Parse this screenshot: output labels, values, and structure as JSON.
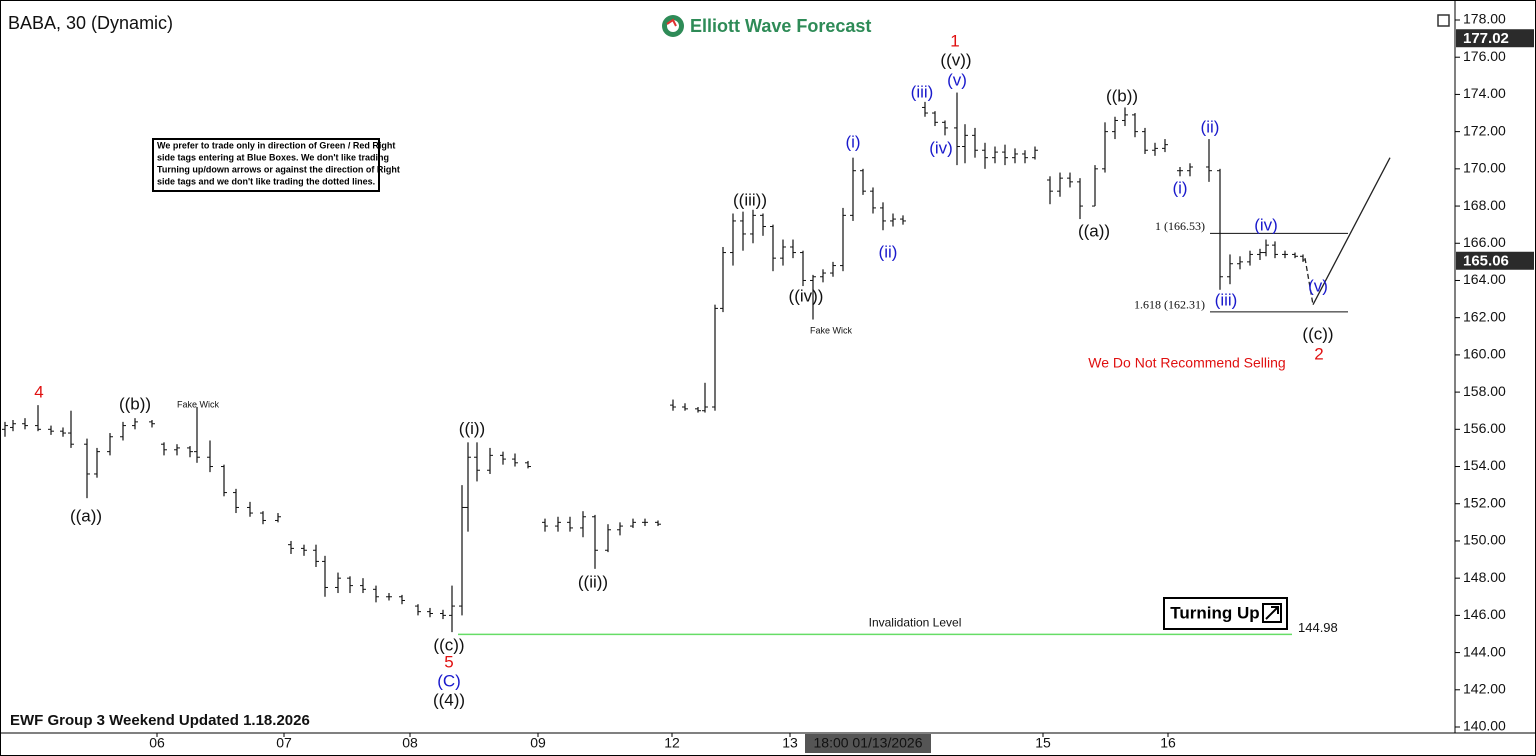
{
  "chart_data": {
    "type": "ohlc",
    "title": "BABA, 30 (Dynamic)",
    "logo": "Elliott Wave Forecast",
    "footer": "EWF Group 3 Weekend Updated 1.18.2026",
    "warning": "We Do Not Recommend Selling",
    "badge": "Turning Up",
    "note_lines": [
      "We prefer to trade only in direction of Green / Red Right",
      "side tags entering at Blue Boxes. We don't like trading",
      "Turning up/down arrows or against the direction of Right",
      "side tags and we don't like trading the dotted lines."
    ],
    "bar_color": "#111111",
    "xlim": [
      0,
      145.5
    ],
    "ylim": [
      140,
      178
    ],
    "yticks": [
      {
        "value": 140,
        "label": "140.00"
      },
      {
        "value": 142,
        "label": "142.00"
      },
      {
        "value": 144,
        "label": "144.00"
      },
      {
        "value": 146,
        "label": "146.00"
      },
      {
        "value": 148,
        "label": "148.00"
      },
      {
        "value": 150,
        "label": "150.00"
      },
      {
        "value": 152,
        "label": "152.00"
      },
      {
        "value": 154,
        "label": "154.00"
      },
      {
        "value": 156,
        "label": "156.00"
      },
      {
        "value": 158,
        "label": "158.00"
      },
      {
        "value": 160,
        "label": "160.00"
      },
      {
        "value": 162,
        "label": "162.00"
      },
      {
        "value": 164,
        "label": "164.00"
      },
      {
        "value": 166,
        "label": "166.00"
      },
      {
        "value": 168,
        "label": "168.00"
      },
      {
        "value": 170,
        "label": "170.00"
      },
      {
        "value": 172,
        "label": "172.00"
      },
      {
        "value": 174,
        "label": "174.00"
      },
      {
        "value": 176,
        "label": "176.00"
      },
      {
        "value": 178,
        "label": "178.00"
      }
    ],
    "xticks": [
      {
        "value": 15.7,
        "label": "06"
      },
      {
        "value": 28.4,
        "label": "07"
      },
      {
        "value": 41.0,
        "label": "08"
      },
      {
        "value": 53.8,
        "label": "09"
      },
      {
        "value": 67.2,
        "label": "12"
      },
      {
        "value": 79.0,
        "label": "13"
      },
      {
        "value": 104.3,
        "label": "15"
      },
      {
        "value": 116.8,
        "label": "16"
      }
    ],
    "crosshair": {
      "value": 86.8,
      "label": "18:00 01/13/2026"
    },
    "price_tags": [
      {
        "value": 177.02,
        "color": "#2b2b2b"
      },
      {
        "value": 165.06,
        "color": "#2b2b2b"
      }
    ],
    "bars": [
      [
        0.5,
        156.0,
        156.4,
        155.6,
        156.2
      ],
      [
        1.3,
        156.1,
        156.5,
        155.9,
        156.3
      ],
      [
        2.5,
        156.3,
        156.6,
        156.0,
        156.2
      ],
      [
        3.8,
        156.2,
        157.3,
        155.9,
        156.0
      ],
      [
        5.1,
        156.0,
        156.2,
        155.7,
        155.9
      ],
      [
        6.3,
        155.9,
        156.1,
        155.6,
        155.8
      ],
      [
        7.1,
        155.8,
        157.0,
        155.0,
        155.2
      ],
      [
        8.7,
        155.2,
        155.5,
        152.3,
        153.6
      ],
      [
        9.7,
        153.6,
        155.0,
        153.4,
        154.8
      ],
      [
        11.0,
        154.8,
        155.8,
        154.6,
        155.6
      ],
      [
        12.3,
        155.6,
        156.4,
        155.4,
        156.2
      ],
      [
        13.5,
        156.2,
        156.6,
        156.0,
        156.4
      ],
      [
        15.2,
        156.4,
        156.5,
        156.1,
        156.3
      ],
      [
        16.4,
        155.2,
        155.3,
        154.6,
        154.9
      ],
      [
        17.7,
        154.9,
        155.2,
        154.6,
        155.0
      ],
      [
        19.0,
        155.0,
        155.1,
        154.5,
        154.8
      ],
      [
        19.7,
        154.8,
        157.2,
        154.2,
        154.5
      ],
      [
        21.0,
        154.5,
        155.4,
        153.7,
        154.0
      ],
      [
        22.4,
        154.0,
        154.1,
        152.4,
        152.6
      ],
      [
        23.6,
        152.6,
        152.8,
        151.5,
        151.8
      ],
      [
        25.0,
        151.8,
        152.1,
        151.3,
        151.5
      ],
      [
        26.3,
        151.5,
        151.6,
        150.9,
        151.1
      ],
      [
        27.8,
        151.1,
        151.5,
        151.0,
        151.3
      ],
      [
        29.1,
        149.8,
        150.0,
        149.3,
        149.6
      ],
      [
        30.4,
        149.6,
        149.8,
        149.2,
        149.5
      ],
      [
        31.6,
        149.5,
        149.8,
        148.6,
        148.9
      ],
      [
        32.5,
        148.9,
        149.2,
        147.0,
        147.5
      ],
      [
        33.8,
        147.5,
        148.3,
        147.2,
        148.0
      ],
      [
        35.0,
        148.0,
        148.1,
        147.2,
        147.6
      ],
      [
        36.3,
        147.6,
        148.0,
        147.2,
        147.4
      ],
      [
        37.6,
        147.4,
        147.6,
        146.7,
        147.0
      ],
      [
        38.9,
        147.0,
        147.2,
        146.8,
        147.0
      ],
      [
        40.2,
        147.0,
        147.1,
        146.6,
        146.8
      ],
      [
        41.8,
        146.5,
        146.6,
        146.0,
        146.2
      ],
      [
        43.0,
        146.2,
        146.4,
        145.9,
        146.1
      ],
      [
        44.3,
        146.1,
        146.3,
        145.8,
        146.0
      ],
      [
        45.2,
        146.0,
        147.6,
        145.1,
        146.5
      ],
      [
        46.2,
        146.5,
        153.0,
        146.0,
        151.8
      ],
      [
        46.8,
        151.8,
        155.3,
        150.5,
        154.5
      ],
      [
        47.7,
        154.5,
        155.3,
        153.2,
        153.8
      ],
      [
        49.0,
        153.8,
        155.0,
        153.6,
        154.6
      ],
      [
        50.3,
        154.6,
        154.8,
        154.1,
        154.4
      ],
      [
        51.5,
        154.4,
        154.7,
        154.0,
        154.2
      ],
      [
        52.8,
        154.2,
        154.3,
        153.9,
        154.0
      ],
      [
        54.5,
        151.0,
        151.2,
        150.5,
        150.8
      ],
      [
        55.8,
        150.8,
        151.3,
        150.5,
        151.0
      ],
      [
        57.0,
        151.0,
        151.3,
        150.5,
        150.7
      ],
      [
        58.3,
        150.7,
        151.6,
        150.2,
        151.3
      ],
      [
        59.5,
        151.3,
        151.4,
        148.5,
        149.5
      ],
      [
        60.8,
        149.5,
        150.9,
        149.4,
        150.6
      ],
      [
        62.0,
        150.6,
        151.0,
        150.3,
        150.8
      ],
      [
        63.3,
        150.8,
        151.2,
        150.7,
        151.0
      ],
      [
        64.5,
        151.0,
        151.2,
        150.8,
        151.0
      ],
      [
        65.8,
        151.0,
        151.1,
        150.8,
        150.9
      ],
      [
        67.3,
        157.3,
        157.6,
        157.0,
        157.2
      ],
      [
        68.5,
        157.2,
        157.4,
        157.0,
        157.1
      ],
      [
        69.8,
        157.1,
        157.2,
        156.9,
        157.0
      ],
      [
        70.5,
        157.0,
        158.5,
        156.9,
        157.2
      ],
      [
        71.5,
        157.2,
        162.7,
        157.0,
        162.5
      ],
      [
        72.3,
        162.5,
        165.8,
        162.3,
        165.5
      ],
      [
        73.3,
        165.5,
        167.6,
        164.8,
        167.2
      ],
      [
        74.3,
        167.2,
        167.7,
        165.6,
        166.5
      ],
      [
        75.3,
        166.5,
        167.8,
        166.0,
        167.5
      ],
      [
        76.3,
        167.5,
        167.6,
        166.4,
        166.9
      ],
      [
        77.3,
        166.9,
        167.0,
        164.5,
        165.2
      ],
      [
        78.3,
        165.2,
        166.2,
        164.8,
        165.8
      ],
      [
        79.3,
        165.8,
        166.2,
        165.2,
        165.5
      ],
      [
        80.3,
        165.5,
        165.6,
        163.7,
        164.0
      ],
      [
        81.3,
        164.0,
        164.3,
        161.9,
        164.2
      ],
      [
        82.3,
        164.2,
        164.6,
        163.9,
        164.4
      ],
      [
        83.3,
        164.4,
        165.0,
        164.2,
        164.8
      ],
      [
        84.3,
        164.8,
        167.9,
        164.5,
        167.5
      ],
      [
        85.3,
        167.5,
        170.6,
        167.2,
        169.9
      ],
      [
        86.3,
        169.9,
        170.0,
        168.6,
        168.8
      ],
      [
        87.3,
        168.8,
        169.0,
        167.6,
        167.9
      ],
      [
        88.3,
        167.9,
        168.2,
        166.7,
        167.2
      ],
      [
        89.3,
        167.2,
        167.6,
        166.9,
        167.3
      ],
      [
        90.3,
        167.3,
        167.5,
        167.0,
        167.2
      ],
      [
        92.5,
        173.3,
        173.6,
        172.8,
        173.0
      ],
      [
        93.5,
        173.0,
        173.1,
        172.3,
        172.5
      ],
      [
        94.5,
        172.5,
        172.6,
        171.8,
        172.2
      ],
      [
        95.7,
        172.2,
        174.1,
        170.2,
        171.2
      ],
      [
        96.5,
        171.2,
        172.4,
        170.3,
        171.8
      ],
      [
        97.5,
        171.8,
        172.2,
        170.6,
        171.0
      ],
      [
        98.5,
        171.0,
        171.4,
        170.0,
        170.6
      ],
      [
        99.5,
        170.6,
        171.2,
        170.3,
        170.9
      ],
      [
        100.5,
        170.9,
        171.3,
        170.2,
        170.6
      ],
      [
        101.5,
        170.6,
        171.1,
        170.3,
        170.8
      ],
      [
        102.5,
        170.8,
        171.0,
        170.3,
        170.6
      ],
      [
        103.5,
        170.6,
        171.2,
        170.5,
        171.0
      ],
      [
        105.0,
        169.4,
        169.6,
        168.1,
        168.8
      ],
      [
        106.0,
        168.8,
        169.8,
        168.5,
        169.5
      ],
      [
        107.0,
        169.5,
        169.8,
        169.0,
        169.3
      ],
      [
        108.0,
        169.3,
        169.5,
        167.3,
        168.0
      ],
      [
        109.5,
        168.0,
        170.2,
        168.0,
        170.0
      ],
      [
        110.5,
        170.0,
        172.5,
        169.8,
        172.0
      ],
      [
        111.5,
        172.0,
        172.8,
        171.6,
        172.6
      ],
      [
        112.5,
        172.6,
        173.3,
        172.3,
        172.9
      ],
      [
        113.5,
        172.9,
        173.0,
        171.7,
        172.0
      ],
      [
        114.5,
        172.0,
        172.2,
        170.8,
        171.0
      ],
      [
        115.5,
        171.0,
        171.4,
        170.7,
        171.1
      ],
      [
        116.5,
        171.1,
        171.6,
        170.9,
        171.3
      ],
      [
        118.0,
        169.9,
        170.1,
        169.6,
        169.9
      ],
      [
        119.0,
        169.9,
        170.3,
        169.6,
        170.1
      ],
      [
        120.9,
        170.1,
        171.6,
        169.3,
        169.9
      ],
      [
        122.0,
        169.9,
        170.0,
        163.5,
        164.2
      ],
      [
        123.0,
        164.2,
        165.4,
        163.8,
        164.9
      ],
      [
        124.0,
        164.9,
        165.3,
        164.6,
        165.0
      ],
      [
        125.0,
        165.0,
        165.6,
        164.8,
        165.4
      ],
      [
        126.0,
        165.4,
        165.7,
        165.1,
        165.5
      ],
      [
        126.6,
        165.5,
        166.2,
        165.3,
        165.9
      ],
      [
        127.5,
        165.9,
        166.1,
        165.2,
        165.4
      ],
      [
        128.5,
        165.4,
        165.6,
        165.2,
        165.4
      ],
      [
        129.5,
        165.4,
        165.5,
        165.2,
        165.3
      ],
      [
        130.3,
        165.3,
        165.4,
        165.0,
        165.1
      ]
    ],
    "invalidation": {
      "value": 144.98,
      "text": "Invalidation Level",
      "x": [
        45.8,
        129.2
      ],
      "color": "#66dd66"
    },
    "fib_levels": [
      {
        "value": 166.53,
        "label": "1 (166.53)",
        "x": [
          121.0,
          134.8
        ]
      },
      {
        "value": 162.31,
        "label": "1.618 (162.31)",
        "x": [
          121.0,
          134.8
        ]
      }
    ],
    "projection": {
      "x": [
        130.5,
        131.3,
        139.0
      ],
      "y": [
        165.2,
        162.7,
        170.6
      ]
    },
    "annotations": [
      {
        "text": "4",
        "x": 3.9,
        "y": 157.95,
        "color": "#e01010"
      },
      {
        "text": "((a))",
        "x": 8.6,
        "y": 151.28,
        "color": "#111111"
      },
      {
        "text": "((b))",
        "x": 13.5,
        "y": 157.3,
        "color": "#111111"
      },
      {
        "text": "((c))",
        "x": 44.9,
        "y": 144.34,
        "color": "#111111"
      },
      {
        "text": "5",
        "x": 44.9,
        "y": 143.43,
        "color": "#e01010"
      },
      {
        "text": "(C)",
        "x": 44.9,
        "y": 142.41,
        "color": "#1a1acc"
      },
      {
        "text": "((4))",
        "x": 44.9,
        "y": 141.39,
        "color": "#111111"
      },
      {
        "text": "((i))",
        "x": 47.2,
        "y": 156.0,
        "color": "#111111"
      },
      {
        "text": "((ii))",
        "x": 59.3,
        "y": 147.73,
        "color": "#111111"
      },
      {
        "text": "((iii))",
        "x": 75.0,
        "y": 168.27,
        "color": "#111111"
      },
      {
        "text": "((iv))",
        "x": 80.6,
        "y": 163.11,
        "color": "#111111"
      },
      {
        "text": "(i)",
        "x": 85.3,
        "y": 171.39,
        "color": "#1a1acc"
      },
      {
        "text": "(ii)",
        "x": 88.8,
        "y": 165.47,
        "color": "#1a1acc"
      },
      {
        "text": "(iii)",
        "x": 92.2,
        "y": 174.08,
        "color": "#1a1acc"
      },
      {
        "text": "(iv)",
        "x": 94.1,
        "y": 171.07,
        "color": "#1a1acc"
      },
      {
        "text": "(v)",
        "x": 95.7,
        "y": 174.72,
        "color": "#1a1acc"
      },
      {
        "text": "((v))",
        "x": 95.6,
        "y": 175.8,
        "color": "#111111"
      },
      {
        "text": "1",
        "x": 95.5,
        "y": 176.82,
        "color": "#e01010"
      },
      {
        "text": "((a))",
        "x": 109.4,
        "y": 166.6,
        "color": "#111111"
      },
      {
        "text": "((b))",
        "x": 112.2,
        "y": 173.86,
        "color": "#111111"
      },
      {
        "text": "(i)",
        "x": 118.0,
        "y": 168.91,
        "color": "#1a1acc"
      },
      {
        "text": "(ii)",
        "x": 121.0,
        "y": 172.19,
        "color": "#1a1acc"
      },
      {
        "text": "(iii)",
        "x": 122.6,
        "y": 162.89,
        "color": "#1a1acc"
      },
      {
        "text": "(iv)",
        "x": 126.6,
        "y": 166.92,
        "color": "#1a1acc"
      },
      {
        "text": "(v)",
        "x": 131.8,
        "y": 163.65,
        "color": "#1a1acc"
      },
      {
        "text": "((c))",
        "x": 131.8,
        "y": 161.06,
        "color": "#111111"
      },
      {
        "text": "2",
        "x": 131.9,
        "y": 159.99,
        "color": "#e01010"
      }
    ],
    "wick_notes": [
      {
        "text": "Fake Wick",
        "x": 19.8,
        "y": 157.3
      },
      {
        "text": "Fake Wick",
        "x": 83.1,
        "y": 161.28
      }
    ]
  }
}
